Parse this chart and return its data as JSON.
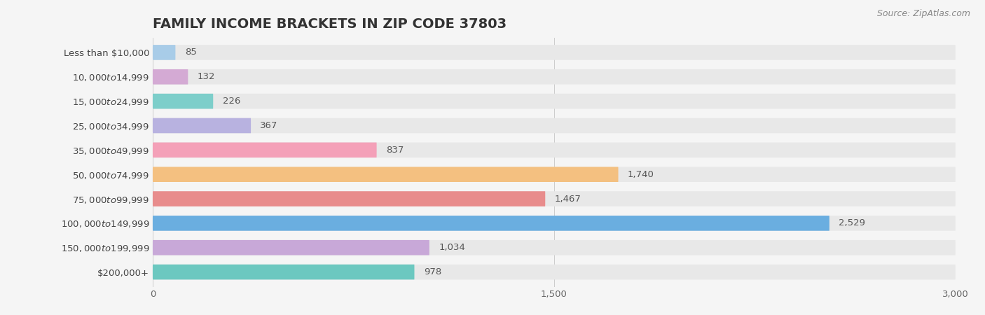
{
  "title": "FAMILY INCOME BRACKETS IN ZIP CODE 37803",
  "source": "Source: ZipAtlas.com",
  "categories": [
    "Less than $10,000",
    "$10,000 to $14,999",
    "$15,000 to $24,999",
    "$25,000 to $34,999",
    "$35,000 to $49,999",
    "$50,000 to $74,999",
    "$75,000 to $99,999",
    "$100,000 to $149,999",
    "$150,000 to $199,999",
    "$200,000+"
  ],
  "values": [
    85,
    132,
    226,
    367,
    837,
    1740,
    1467,
    2529,
    1034,
    978
  ],
  "bar_colors": [
    "#a8cce8",
    "#d4aad4",
    "#7dceca",
    "#b8b2e0",
    "#f4a0b8",
    "#f4c080",
    "#e88c8c",
    "#6aaee0",
    "#c8a8d8",
    "#6cc8c0"
  ],
  "background_color": "#f5f5f5",
  "bar_bg_color": "#e8e8e8",
  "xlim": [
    0,
    3000
  ],
  "xticks": [
    0,
    1500,
    3000
  ],
  "title_fontsize": 14,
  "label_fontsize": 9.5,
  "value_fontsize": 9.5,
  "source_fontsize": 9
}
